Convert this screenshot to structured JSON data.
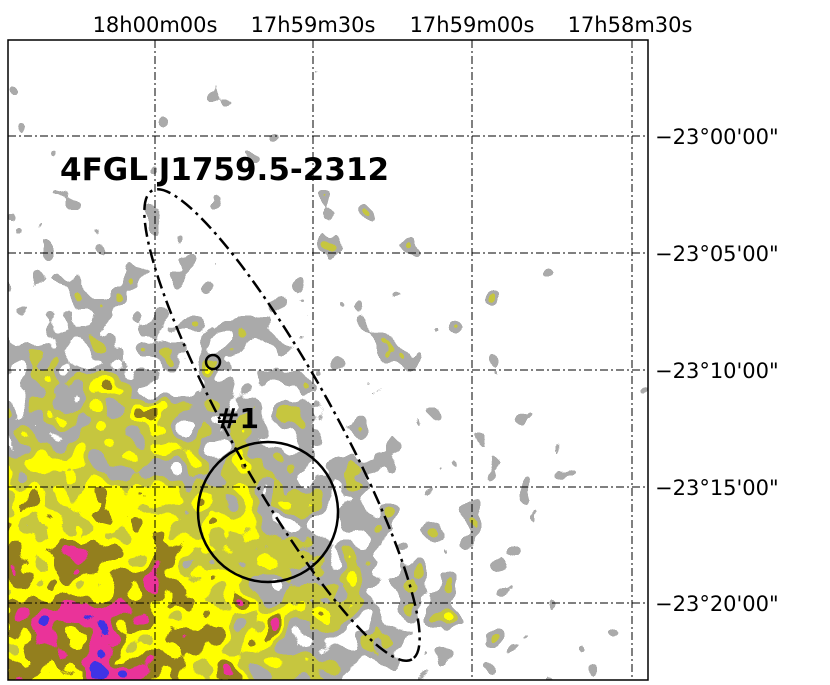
{
  "axes": {
    "ra_ticks": [
      "18h00m00s",
      "17h59m30s",
      "17h59m00s",
      "17h58m30s"
    ],
    "dec_ticks": [
      "−23°00'00\"",
      "−23°05'00\"",
      "−23°10'00\"",
      "−23°15'00\"",
      "−23°20'00\""
    ]
  },
  "annotations": {
    "source": "4FGL J1759.5-2312",
    "label": "#1"
  }
}
